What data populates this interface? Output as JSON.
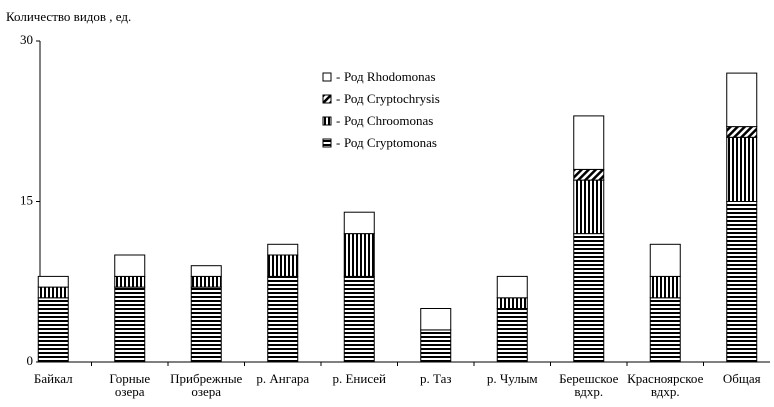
{
  "chart_data": {
    "type": "stacked-bar",
    "y_label": "Количество видов , ед.",
    "categories": [
      "Байкал",
      "Горные\nозера",
      "Прибрежные\nозера",
      "р. Ангара",
      "р. Енисей",
      "р. Таз",
      "р. Чулым",
      "Берешское\nвдхр.",
      "Красноярское\nвдхр.",
      "Общая"
    ],
    "series": [
      {
        "name": "Род Cryptomonas",
        "pattern": "horizontal",
        "values": [
          6,
          7,
          7,
          8,
          8,
          3,
          5,
          12,
          6,
          15
        ]
      },
      {
        "name": "Род Chroomonas",
        "pattern": "vertical",
        "values": [
          1,
          1,
          1,
          2,
          4,
          0,
          1,
          5,
          2,
          6
        ]
      },
      {
        "name": "Род Cryptochrysis",
        "pattern": "diagonal",
        "values": [
          0,
          0,
          0,
          0,
          0,
          0,
          0,
          1,
          0,
          1
        ]
      },
      {
        "name": "Род Rhodomonas",
        "pattern": "white",
        "values": [
          1,
          2,
          1,
          1,
          2,
          2,
          2,
          5,
          3,
          5
        ]
      }
    ],
    "ylim": [
      0,
      30
    ],
    "yticks": [
      0,
      15,
      30
    ]
  }
}
